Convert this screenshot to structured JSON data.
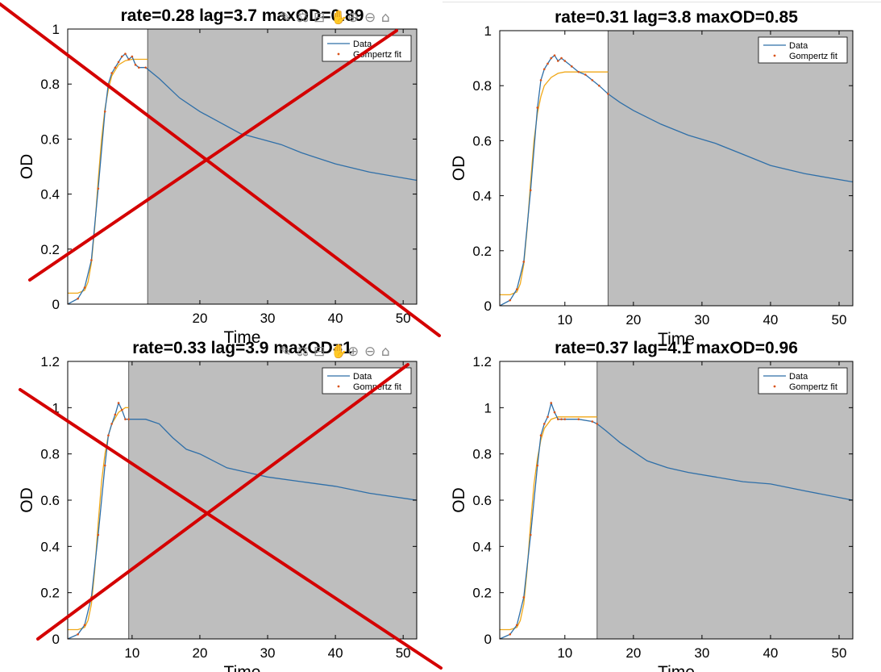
{
  "colors": {
    "data_line": "#2f6fa8",
    "fit_line": "#f0a818",
    "fit_points": "#d95319",
    "excluded_region": "#bebebe",
    "cross_mark": "#d40000",
    "axis": "#000000"
  },
  "toolbar_icons": [
    "brush-icon",
    "data-tips-icon",
    "restore-view-icon",
    "pan-icon",
    "zoom-in-icon",
    "zoom-out-icon",
    "home-icon"
  ],
  "chart_data": [
    {
      "type": "line",
      "title": "rate=0.28 lag=3.7 maxOD=0.89",
      "xlabel": "Time",
      "ylabel": "OD",
      "xlim": [
        0.5,
        52
      ],
      "ylim": [
        0,
        1
      ],
      "xticks": [
        20,
        30,
        40,
        50
      ],
      "xtick_labels": [
        "20",
        "30",
        "40",
        "50"
      ],
      "yticks": [
        0,
        0.2,
        0.4,
        0.6,
        0.8,
        1
      ],
      "ytick_labels": [
        "0",
        "0.2",
        "0.4",
        "0.6",
        "0.8",
        "1"
      ],
      "excluded_from": 12.3,
      "crossed_out": true,
      "show_toolbar": true,
      "legend": {
        "position": "top-right",
        "entries": [
          "Data",
          "Gompertz fit"
        ]
      },
      "series": [
        {
          "name": "Data",
          "x": [
            0.5,
            2,
            3,
            4,
            5,
            6,
            6.5,
            7,
            7.5,
            8,
            8.5,
            9,
            9.5,
            10,
            10.5,
            11,
            12,
            14,
            17,
            20,
            23,
            26,
            29,
            32,
            35,
            40,
            45,
            52
          ],
          "y": [
            0.0,
            0.02,
            0.06,
            0.16,
            0.42,
            0.7,
            0.8,
            0.84,
            0.86,
            0.88,
            0.9,
            0.91,
            0.89,
            0.9,
            0.87,
            0.86,
            0.86,
            0.82,
            0.75,
            0.7,
            0.66,
            0.62,
            0.6,
            0.58,
            0.55,
            0.51,
            0.48,
            0.45
          ]
        },
        {
          "name": "Gompertz fit",
          "x": [
            0.5,
            2,
            3,
            3.5,
            4,
            4.5,
            5,
            5.5,
            6,
            6.5,
            7,
            8,
            9,
            10,
            11,
            12.3
          ],
          "y": [
            0.04,
            0.04,
            0.05,
            0.08,
            0.15,
            0.28,
            0.45,
            0.6,
            0.71,
            0.78,
            0.83,
            0.87,
            0.885,
            0.89,
            0.89,
            0.89
          ]
        }
      ]
    },
    {
      "type": "line",
      "title": "rate=0.31 lag=3.8 maxOD=0.85",
      "xlabel": "Time",
      "ylabel": "OD",
      "xlim": [
        0.5,
        52
      ],
      "ylim": [
        0,
        1
      ],
      "xticks": [
        10,
        20,
        30,
        40,
        50
      ],
      "xtick_labels": [
        "10",
        "20",
        "30",
        "40",
        "50"
      ],
      "yticks": [
        0,
        0.2,
        0.4,
        0.6,
        0.8,
        1
      ],
      "ytick_labels": [
        "0",
        "0.2",
        "0.4",
        "0.6",
        "0.8",
        "1"
      ],
      "excluded_from": 16.3,
      "crossed_out": false,
      "show_toolbar": false,
      "legend": {
        "position": "top-right",
        "entries": [
          "Data",
          "Gompertz fit"
        ]
      },
      "series": [
        {
          "name": "Data",
          "x": [
            0.5,
            2,
            3,
            4,
            5,
            6,
            6.5,
            7,
            7.5,
            8,
            8.5,
            9,
            9.5,
            10,
            11,
            12,
            13,
            14,
            15,
            16.3,
            18,
            20,
            24,
            28,
            32,
            36,
            40,
            45,
            52
          ],
          "y": [
            0.0,
            0.02,
            0.06,
            0.16,
            0.42,
            0.72,
            0.82,
            0.86,
            0.88,
            0.9,
            0.91,
            0.89,
            0.9,
            0.89,
            0.87,
            0.85,
            0.84,
            0.82,
            0.8,
            0.77,
            0.74,
            0.71,
            0.66,
            0.62,
            0.59,
            0.55,
            0.51,
            0.48,
            0.45
          ]
        },
        {
          "name": "Gompertz fit",
          "x": [
            0.5,
            2,
            3,
            3.5,
            4,
            4.5,
            5,
            5.5,
            6,
            6.5,
            7,
            8,
            9,
            10,
            12,
            16.3
          ],
          "y": [
            0.04,
            0.04,
            0.05,
            0.08,
            0.15,
            0.28,
            0.45,
            0.6,
            0.7,
            0.76,
            0.8,
            0.83,
            0.845,
            0.85,
            0.85,
            0.85
          ]
        }
      ]
    },
    {
      "type": "line",
      "title": "rate=0.33 lag=3.9 maxOD=1",
      "xlabel": "Time",
      "ylabel": "OD",
      "xlim": [
        0.5,
        52
      ],
      "ylim": [
        0,
        1.2
      ],
      "xticks": [
        10,
        20,
        30,
        40,
        50
      ],
      "xtick_labels": [
        "10",
        "20",
        "30",
        "40",
        "50"
      ],
      "yticks": [
        0,
        0.2,
        0.4,
        0.6,
        0.8,
        1,
        1.2
      ],
      "ytick_labels": [
        "0",
        "0.2",
        "0.4",
        "0.6",
        "0.8",
        "1",
        "1.2"
      ],
      "excluded_from": 9.5,
      "crossed_out": true,
      "show_toolbar": true,
      "legend": {
        "position": "top-right",
        "entries": [
          "Data",
          "Gompertz fit"
        ]
      },
      "series": [
        {
          "name": "Data",
          "x": [
            0.5,
            2,
            3,
            4,
            5,
            6,
            6.5,
            7,
            7.5,
            8,
            8.5,
            9,
            9.5,
            10,
            12,
            14,
            16,
            18,
            20,
            22,
            24,
            27,
            30,
            35,
            40,
            45,
            52
          ],
          "y": [
            0.0,
            0.02,
            0.06,
            0.18,
            0.45,
            0.75,
            0.88,
            0.93,
            0.97,
            1.02,
            0.99,
            0.95,
            0.95,
            0.95,
            0.95,
            0.93,
            0.87,
            0.82,
            0.8,
            0.77,
            0.74,
            0.72,
            0.7,
            0.68,
            0.66,
            0.63,
            0.6
          ]
        },
        {
          "name": "Gompertz fit",
          "x": [
            0.5,
            2,
            3,
            3.5,
            4,
            4.5,
            5,
            5.5,
            6,
            6.5,
            7,
            8,
            9,
            9.5
          ],
          "y": [
            0.04,
            0.04,
            0.05,
            0.08,
            0.15,
            0.3,
            0.5,
            0.68,
            0.8,
            0.88,
            0.93,
            0.98,
            1.0,
            1.0
          ]
        }
      ]
    },
    {
      "type": "line",
      "title": "rate=0.37 lag=4.1 maxOD=0.96",
      "xlabel": "Time",
      "ylabel": "OD",
      "xlim": [
        0.5,
        52
      ],
      "ylim": [
        0,
        1.2
      ],
      "xticks": [
        10,
        20,
        30,
        40,
        50
      ],
      "xtick_labels": [
        "10",
        "20",
        "30",
        "40",
        "50"
      ],
      "yticks": [
        0,
        0.2,
        0.4,
        0.6,
        0.8,
        1,
        1.2
      ],
      "ytick_labels": [
        "0",
        "0.2",
        "0.4",
        "0.6",
        "0.8",
        "1",
        "1.2"
      ],
      "excluded_from": 14.7,
      "crossed_out": false,
      "show_toolbar": false,
      "legend": {
        "position": "top-right",
        "entries": [
          "Data",
          "Gompertz fit"
        ]
      },
      "series": [
        {
          "name": "Data",
          "x": [
            0.5,
            2,
            3,
            4,
            5,
            6,
            6.5,
            7,
            7.5,
            8,
            8.5,
            9,
            9.5,
            10,
            12,
            14,
            14.7,
            16,
            18,
            20,
            22,
            25,
            28,
            32,
            36,
            40,
            45,
            52
          ],
          "y": [
            0.0,
            0.02,
            0.06,
            0.18,
            0.45,
            0.75,
            0.88,
            0.93,
            0.96,
            1.02,
            0.98,
            0.95,
            0.95,
            0.95,
            0.95,
            0.94,
            0.93,
            0.9,
            0.85,
            0.81,
            0.77,
            0.74,
            0.72,
            0.7,
            0.68,
            0.67,
            0.64,
            0.6
          ]
        },
        {
          "name": "Gompertz fit",
          "x": [
            0.5,
            2,
            3,
            3.5,
            4,
            4.5,
            5,
            5.5,
            6,
            6.5,
            7,
            8,
            9,
            10,
            14.7
          ],
          "y": [
            0.04,
            0.04,
            0.05,
            0.08,
            0.15,
            0.3,
            0.5,
            0.67,
            0.78,
            0.86,
            0.91,
            0.95,
            0.96,
            0.96,
            0.96
          ]
        }
      ]
    }
  ]
}
